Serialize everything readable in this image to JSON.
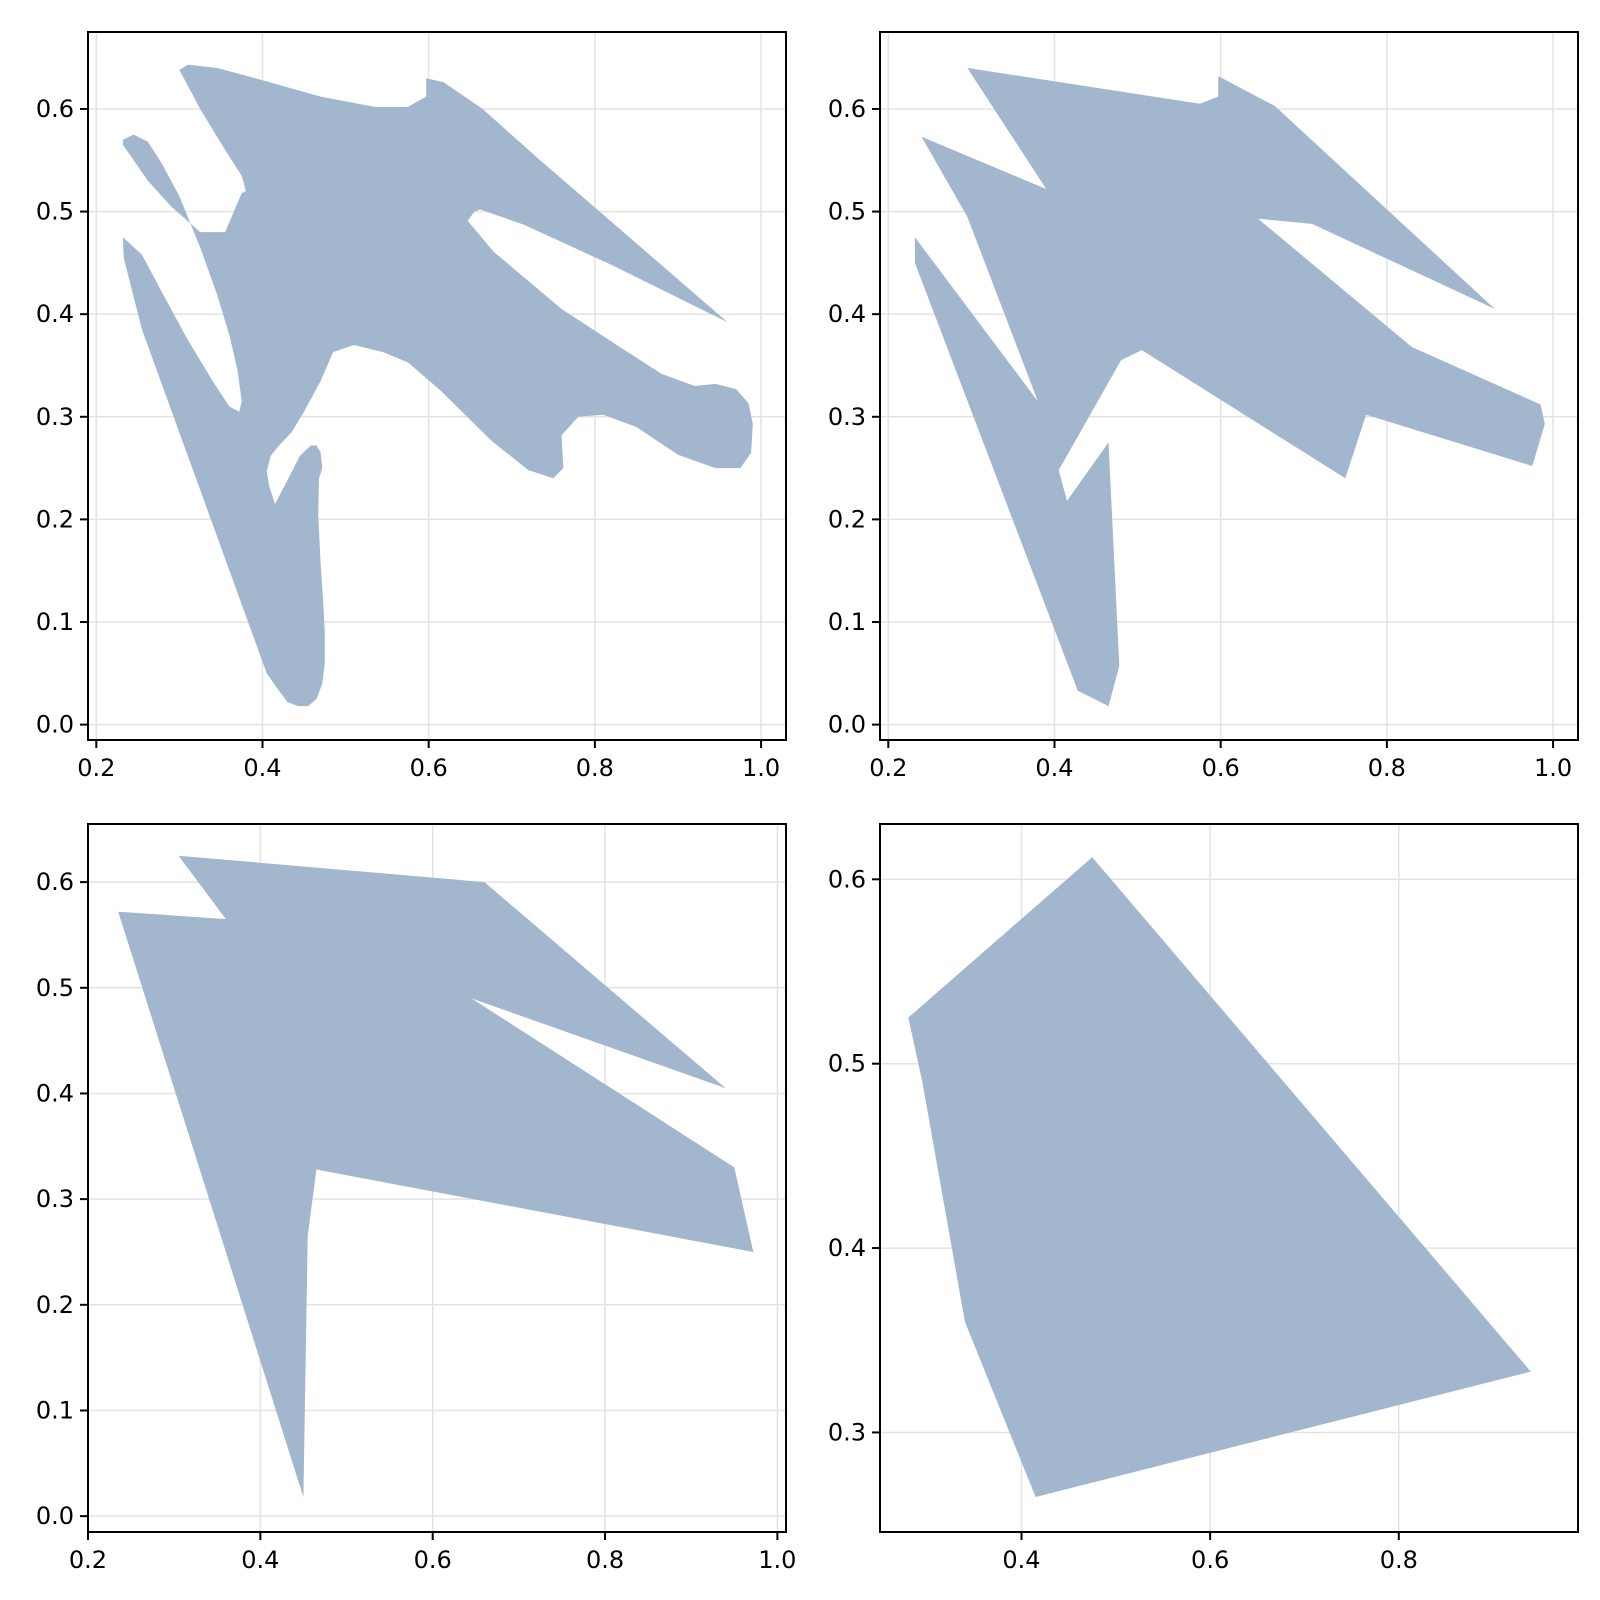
{
  "chart_data": [
    {
      "type": "polygon",
      "fill_color": "#a2b6cd",
      "grid": true,
      "xlim": [
        0.19,
        1.03
      ],
      "ylim": [
        -0.015,
        0.675
      ],
      "xticks": [
        0.2,
        0.4,
        0.6,
        0.8,
        1.0
      ],
      "xtick_labels": [
        "0.2",
        "0.4",
        "0.6",
        "0.8",
        "1.0"
      ],
      "yticks": [
        0.0,
        0.1,
        0.2,
        0.3,
        0.4,
        0.5,
        0.6
      ],
      "ytick_labels": [
        "0.0",
        "0.1",
        "0.2",
        "0.3",
        "0.4",
        "0.5",
        "0.6"
      ],
      "polygon": [
        [
          0.3,
          0.638
        ],
        [
          0.31,
          0.643
        ],
        [
          0.345,
          0.64
        ],
        [
          0.4,
          0.628
        ],
        [
          0.47,
          0.612
        ],
        [
          0.535,
          0.602
        ],
        [
          0.575,
          0.602
        ],
        [
          0.597,
          0.612
        ],
        [
          0.597,
          0.63
        ],
        [
          0.618,
          0.626
        ],
        [
          0.665,
          0.6
        ],
        [
          0.73,
          0.553
        ],
        [
          0.96,
          0.392
        ],
        [
          0.82,
          0.448
        ],
        [
          0.715,
          0.487
        ],
        [
          0.662,
          0.502
        ],
        [
          0.655,
          0.5
        ],
        [
          0.647,
          0.491
        ],
        [
          0.678,
          0.461
        ],
        [
          0.76,
          0.405
        ],
        [
          0.83,
          0.368
        ],
        [
          0.88,
          0.342
        ],
        [
          0.92,
          0.33
        ],
        [
          0.945,
          0.332
        ],
        [
          0.97,
          0.327
        ],
        [
          0.985,
          0.313
        ],
        [
          0.99,
          0.293
        ],
        [
          0.988,
          0.265
        ],
        [
          0.975,
          0.25
        ],
        [
          0.945,
          0.25
        ],
        [
          0.9,
          0.263
        ],
        [
          0.85,
          0.29
        ],
        [
          0.81,
          0.302
        ],
        [
          0.78,
          0.3
        ],
        [
          0.76,
          0.282
        ],
        [
          0.762,
          0.25
        ],
        [
          0.75,
          0.24
        ],
        [
          0.72,
          0.248
        ],
        [
          0.675,
          0.277
        ],
        [
          0.615,
          0.325
        ],
        [
          0.575,
          0.353
        ],
        [
          0.545,
          0.363
        ],
        [
          0.51,
          0.37
        ],
        [
          0.485,
          0.363
        ],
        [
          0.47,
          0.335
        ],
        [
          0.45,
          0.305
        ],
        [
          0.435,
          0.285
        ],
        [
          0.42,
          0.272
        ],
        [
          0.41,
          0.262
        ],
        [
          0.405,
          0.247
        ],
        [
          0.408,
          0.233
        ],
        [
          0.413,
          0.22
        ],
        [
          0.415,
          0.215
        ],
        [
          0.428,
          0.235
        ],
        [
          0.445,
          0.262
        ],
        [
          0.458,
          0.272
        ],
        [
          0.465,
          0.272
        ],
        [
          0.47,
          0.265
        ],
        [
          0.472,
          0.25
        ],
        [
          0.468,
          0.24
        ],
        [
          0.467,
          0.205
        ],
        [
          0.47,
          0.155
        ],
        [
          0.473,
          0.12
        ],
        [
          0.475,
          0.09
        ],
        [
          0.475,
          0.06
        ],
        [
          0.472,
          0.04
        ],
        [
          0.465,
          0.025
        ],
        [
          0.455,
          0.018
        ],
        [
          0.443,
          0.018
        ],
        [
          0.43,
          0.022
        ],
        [
          0.418,
          0.035
        ],
        [
          0.405,
          0.05
        ],
        [
          0.255,
          0.385
        ],
        [
          0.233,
          0.455
        ],
        [
          0.232,
          0.475
        ],
        [
          0.255,
          0.458
        ],
        [
          0.28,
          0.42
        ],
        [
          0.31,
          0.375
        ],
        [
          0.34,
          0.335
        ],
        [
          0.36,
          0.31
        ],
        [
          0.372,
          0.305
        ],
        [
          0.375,
          0.315
        ],
        [
          0.37,
          0.345
        ],
        [
          0.36,
          0.38
        ],
        [
          0.345,
          0.42
        ],
        [
          0.325,
          0.465
        ],
        [
          0.3,
          0.515
        ],
        [
          0.278,
          0.548
        ],
        [
          0.262,
          0.568
        ],
        [
          0.245,
          0.575
        ],
        [
          0.232,
          0.57
        ],
        [
          0.232,
          0.565
        ],
        [
          0.245,
          0.55
        ],
        [
          0.262,
          0.53
        ],
        [
          0.29,
          0.505
        ],
        [
          0.325,
          0.48
        ],
        [
          0.355,
          0.48
        ],
        [
          0.375,
          0.518
        ],
        [
          0.38,
          0.52
        ],
        [
          0.375,
          0.535
        ],
        [
          0.355,
          0.56
        ],
        [
          0.325,
          0.6
        ]
      ]
    },
    {
      "type": "polygon",
      "fill_color": "#a2b6cd",
      "grid": true,
      "xlim": [
        0.19,
        1.03
      ],
      "ylim": [
        -0.015,
        0.675
      ],
      "xticks": [
        0.2,
        0.4,
        0.6,
        0.8,
        1.0
      ],
      "xtick_labels": [
        "0.2",
        "0.4",
        "0.6",
        "0.8",
        "1.0"
      ],
      "yticks": [
        0.0,
        0.1,
        0.2,
        0.3,
        0.4,
        0.5,
        0.6
      ],
      "ytick_labels": [
        "0.0",
        "0.1",
        "0.2",
        "0.3",
        "0.4",
        "0.5",
        "0.6"
      ],
      "polygon": [
        [
          0.295,
          0.64
        ],
        [
          0.575,
          0.605
        ],
        [
          0.597,
          0.612
        ],
        [
          0.597,
          0.632
        ],
        [
          0.665,
          0.603
        ],
        [
          0.93,
          0.405
        ],
        [
          0.71,
          0.488
        ],
        [
          0.645,
          0.493
        ],
        [
          0.83,
          0.368
        ],
        [
          0.985,
          0.312
        ],
        [
          0.99,
          0.293
        ],
        [
          0.975,
          0.252
        ],
        [
          0.775,
          0.302
        ],
        [
          0.75,
          0.24
        ],
        [
          0.505,
          0.365
        ],
        [
          0.48,
          0.355
        ],
        [
          0.405,
          0.248
        ],
        [
          0.415,
          0.218
        ],
        [
          0.465,
          0.275
        ],
        [
          0.478,
          0.057
        ],
        [
          0.465,
          0.018
        ],
        [
          0.428,
          0.033
        ],
        [
          0.232,
          0.45
        ],
        [
          0.232,
          0.475
        ],
        [
          0.38,
          0.315
        ],
        [
          0.295,
          0.495
        ],
        [
          0.24,
          0.573
        ],
        [
          0.39,
          0.522
        ]
      ]
    },
    {
      "type": "polygon",
      "fill_color": "#a2b6cd",
      "grid": true,
      "xlim": [
        0.2,
        1.01
      ],
      "ylim": [
        -0.015,
        0.655
      ],
      "xticks": [
        0.2,
        0.4,
        0.6,
        0.8,
        1.0
      ],
      "xtick_labels": [
        "0.2",
        "0.4",
        "0.6",
        "0.8",
        "1.0"
      ],
      "yticks": [
        0.0,
        0.1,
        0.2,
        0.3,
        0.4,
        0.5,
        0.6
      ],
      "ytick_labels": [
        "0.0",
        "0.1",
        "0.2",
        "0.3",
        "0.4",
        "0.5",
        "0.6"
      ],
      "polygon": [
        [
          0.305,
          0.625
        ],
        [
          0.66,
          0.6
        ],
        [
          0.94,
          0.405
        ],
        [
          0.645,
          0.49
        ],
        [
          0.95,
          0.33
        ],
        [
          0.972,
          0.25
        ],
        [
          0.465,
          0.328
        ],
        [
          0.455,
          0.265
        ],
        [
          0.45,
          0.018
        ],
        [
          0.235,
          0.572
        ],
        [
          0.36,
          0.565
        ]
      ]
    },
    {
      "type": "polygon",
      "fill_color": "#a2b6cd",
      "grid": true,
      "xlim": [
        0.25,
        0.99
      ],
      "ylim": [
        0.246,
        0.63
      ],
      "xticks": [
        0.4,
        0.6,
        0.8
      ],
      "xtick_labels": [
        "0.4",
        "0.6",
        "0.8"
      ],
      "yticks": [
        0.3,
        0.4,
        0.5,
        0.6
      ],
      "ytick_labels": [
        "0.3",
        "0.4",
        "0.5",
        "0.6"
      ],
      "polygon": [
        [
          0.475,
          0.612
        ],
        [
          0.94,
          0.333
        ],
        [
          0.415,
          0.265
        ],
        [
          0.34,
          0.36
        ],
        [
          0.295,
          0.49
        ],
        [
          0.28,
          0.525
        ]
      ]
    }
  ]
}
